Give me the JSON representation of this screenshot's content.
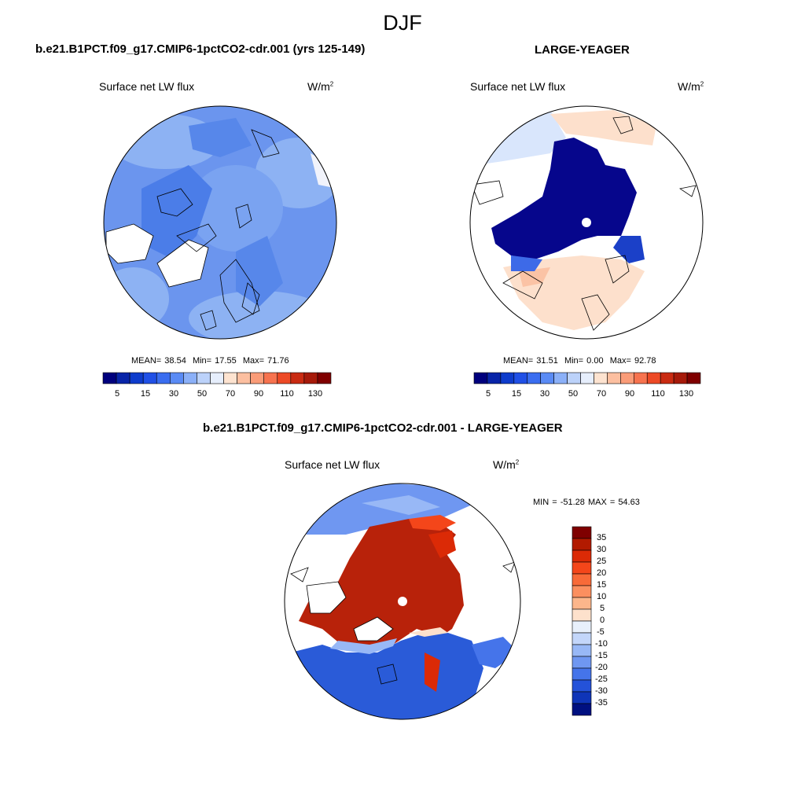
{
  "figure_title": "DJF",
  "panels": [
    {
      "id": "model",
      "title": "b.e21.B1PCT.f09_g17.CMIP6-1pctCO2-cdr.001 (yrs 125-149)",
      "variable": "Surface net LW flux",
      "units": "W/m",
      "units_sup": "2",
      "stats": {
        "mean_label": "MEAN=",
        "mean": "38.54",
        "min_label": "Min=",
        "min": "17.55",
        "max_label": "Max=",
        "max": "71.76"
      }
    },
    {
      "id": "obs",
      "title": "LARGE-YEAGER",
      "variable": "Surface net LW flux",
      "units": "W/m",
      "units_sup": "2",
      "stats": {
        "mean_label": "MEAN=",
        "mean": "31.51",
        "min_label": "Min=",
        "min": "0.00",
        "max_label": "Max=",
        "max": "92.78"
      }
    },
    {
      "id": "diff",
      "title": "b.e21.B1PCT.f09_g17.CMIP6-1pctCO2-cdr.001 - LARGE-YEAGER",
      "variable": "Surface net LW flux",
      "units": "W/m",
      "units_sup": "2",
      "stats_text": "MIN = -51.28 MAX =  54.63"
    }
  ],
  "colorbar_abs": {
    "labels": [
      "5",
      "15",
      "30",
      "50",
      "70",
      "90",
      "110",
      "130"
    ],
    "colors": [
      "#00007d",
      "#0824a8",
      "#0e3ccc",
      "#2050e6",
      "#3a6df0",
      "#5a8bf5",
      "#8bb0f8",
      "#bcd2fa",
      "#e6eefc",
      "#fde3d0",
      "#fcbfa0",
      "#fa9c78",
      "#f7734f",
      "#ed4a26",
      "#c92b12",
      "#a61a0a",
      "#7f0000"
    ]
  },
  "colorbar_diff": {
    "labels": [
      "35",
      "30",
      "25",
      "20",
      "15",
      "10",
      "5",
      "0",
      "-5",
      "-10",
      "-15",
      "-20",
      "-25",
      "-30",
      "-35"
    ],
    "colors": [
      "#7f0000",
      "#b21a00",
      "#db2a06",
      "#f4461a",
      "#f86a38",
      "#fb8f5f",
      "#fcb68b",
      "#fde1cc",
      "#e8f0fb",
      "#c3d6fa",
      "#98b8f6",
      "#6f97f1",
      "#4574ea",
      "#2452d9",
      "#0f35b8",
      "#001080"
    ]
  },
  "palette": {
    "ocean_mid_blue": "#6b95ee",
    "ocean_light_blue": "#8db2f3",
    "ice_dark_blue": "#06068c",
    "diff_red": "#b8220a",
    "diff_blue": "#2a5bd8",
    "land_white": "#ffffff"
  }
}
